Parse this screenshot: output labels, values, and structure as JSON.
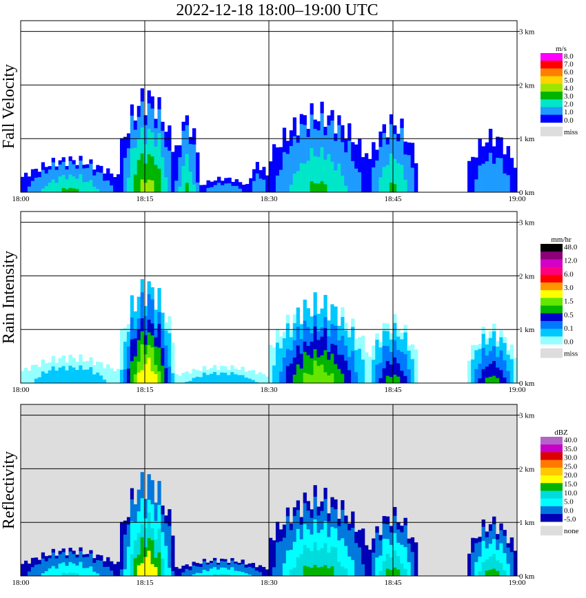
{
  "title": "2022-12-18   18:00–19:00 UTC",
  "chart_data": [
    {
      "type": "heatmap",
      "name": "Fall Velocity",
      "ylabel": "Fall Velocity",
      "x_ticks": [
        "18:00",
        "18:15",
        "18:30",
        "18:45",
        "19:00"
      ],
      "y_ticks": [
        "0 km",
        "1 km",
        "2 km",
        "3 km"
      ],
      "ylim_km": [
        0,
        3.2
      ],
      "colorbar": {
        "unit": "m/s",
        "labels": [
          "8.0",
          "7.0",
          "6.0",
          "5.0",
          "4.0",
          "3.0",
          "2.0",
          "1.0",
          "0.0"
        ],
        "colors": [
          "#ff00ff",
          "#ff0000",
          "#ff7f00",
          "#ffd200",
          "#9be600",
          "#00b400",
          "#00e6c8",
          "#1e9bff",
          "#0000ff"
        ],
        "missing_label": "miss",
        "missing_color": "#dddddd"
      },
      "background": "#ffffff",
      "events": [
        {
          "start": 0.0,
          "end": 0.2,
          "top": 0.7,
          "level": 2
        },
        {
          "start": 0.2,
          "end": 0.31,
          "top": 2.05,
          "level": 3
        },
        {
          "start": 0.31,
          "end": 0.36,
          "top": 1.55,
          "level": 2
        },
        {
          "start": 0.36,
          "end": 0.46,
          "top": 0.3,
          "level": 1
        },
        {
          "start": 0.46,
          "end": 0.5,
          "top": 0.6,
          "level": 1
        },
        {
          "start": 0.5,
          "end": 0.7,
          "top": 1.7,
          "level": 2
        },
        {
          "start": 0.7,
          "end": 0.8,
          "top": 1.5,
          "level": 2
        },
        {
          "start": 0.9,
          "end": 1.0,
          "top": 1.2,
          "level": 1
        }
      ]
    },
    {
      "type": "heatmap",
      "name": "Rain Intensity",
      "ylabel": "Rain Intensity",
      "x_ticks": [
        "18:00",
        "18:15",
        "18:30",
        "18:45",
        "19:00"
      ],
      "y_ticks": [
        "0 km",
        "1 km",
        "2 km",
        "3 km"
      ],
      "ylim_km": [
        0,
        3.2
      ],
      "colorbar": {
        "unit": "mm/hr",
        "labels": [
          "48.0",
          "12.0",
          "6.0",
          "3.0",
          "1.5",
          "0.5",
          "0.1",
          "0.0"
        ],
        "colors": [
          "#000000",
          "#8c0078",
          "#d200c8",
          "#ff0080",
          "#ff0000",
          "#ff9600",
          "#ffff00",
          "#64e600",
          "#00b400",
          "#0000c8",
          "#0078ff",
          "#00c8ff",
          "#96ffff"
        ],
        "missing_label": "miss",
        "missing_color": "#dddddd"
      },
      "background": "#ffffff",
      "events": [
        {
          "start": 0.0,
          "end": 0.2,
          "top": 0.55,
          "level": 1
        },
        {
          "start": 0.2,
          "end": 0.31,
          "top": 2.05,
          "level": 5
        },
        {
          "start": 0.31,
          "end": 0.5,
          "top": 0.35,
          "level": 1
        },
        {
          "start": 0.5,
          "end": 0.7,
          "top": 1.7,
          "level": 4
        },
        {
          "start": 0.7,
          "end": 0.8,
          "top": 1.3,
          "level": 3
        },
        {
          "start": 0.9,
          "end": 1.0,
          "top": 1.15,
          "level": 3
        }
      ]
    },
    {
      "type": "heatmap",
      "name": "Reflectivity",
      "ylabel": "Reflectivity",
      "x_ticks": [
        "18:00",
        "18:15",
        "18:30",
        "18:45",
        "19:00"
      ],
      "y_ticks": [
        "0 km",
        "1 km",
        "2 km",
        "3 km"
      ],
      "ylim_km": [
        0,
        3.2
      ],
      "colorbar": {
        "unit": "dBZ",
        "labels": [
          "40.0",
          "35.0",
          "30.0",
          "25.0",
          "20.0",
          "15.0",
          "10.0",
          "5.0",
          "0.0",
          "-5.0"
        ],
        "colors": [
          "#b464c8",
          "#c800c8",
          "#dc0000",
          "#ff7800",
          "#ffc800",
          "#ffff00",
          "#00b400",
          "#00dcdc",
          "#00ffff",
          "#0078dc",
          "#0000b4"
        ],
        "missing_label": "none",
        "missing_color": "#dddddd"
      },
      "background": "#dddddd",
      "events": [
        {
          "start": 0.0,
          "end": 0.2,
          "top": 0.55,
          "level": 2
        },
        {
          "start": 0.2,
          "end": 0.31,
          "top": 2.05,
          "level": 4
        },
        {
          "start": 0.31,
          "end": 0.5,
          "top": 0.35,
          "level": 2
        },
        {
          "start": 0.5,
          "end": 0.7,
          "top": 1.7,
          "level": 3
        },
        {
          "start": 0.7,
          "end": 0.8,
          "top": 1.3,
          "level": 3
        },
        {
          "start": 0.9,
          "end": 1.0,
          "top": 1.15,
          "level": 3
        }
      ]
    }
  ]
}
